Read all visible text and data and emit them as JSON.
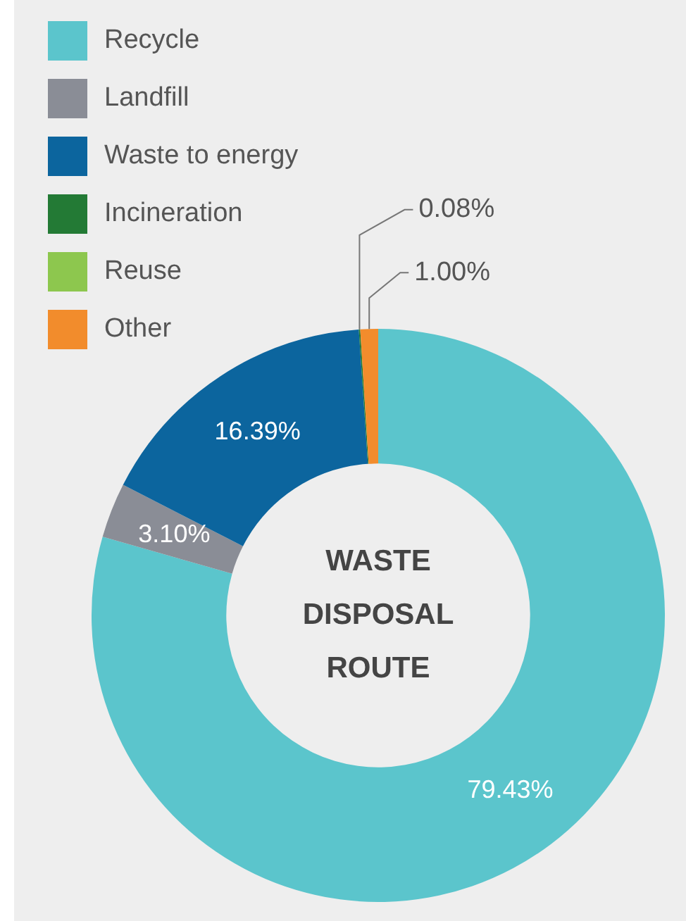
{
  "chart_data": {
    "type": "donut",
    "title": "WASTE DISPOSAL ROUTE",
    "categories": [
      "Recycle",
      "Landfill",
      "Waste to energy",
      "Incineration",
      "Reuse",
      "Other"
    ],
    "values": [
      79.43,
      3.1,
      16.39,
      0.08,
      0,
      1.0
    ],
    "colors": [
      "#5bc5cc",
      "#8a8d96",
      "#0c659e",
      "#237a35",
      "#8dc74e",
      "#f28c2c"
    ],
    "value_labels": [
      "79.43%",
      "3.10%",
      "16.39%",
      "0.08%",
      null,
      "1.00%"
    ],
    "legend": "top left"
  }
}
